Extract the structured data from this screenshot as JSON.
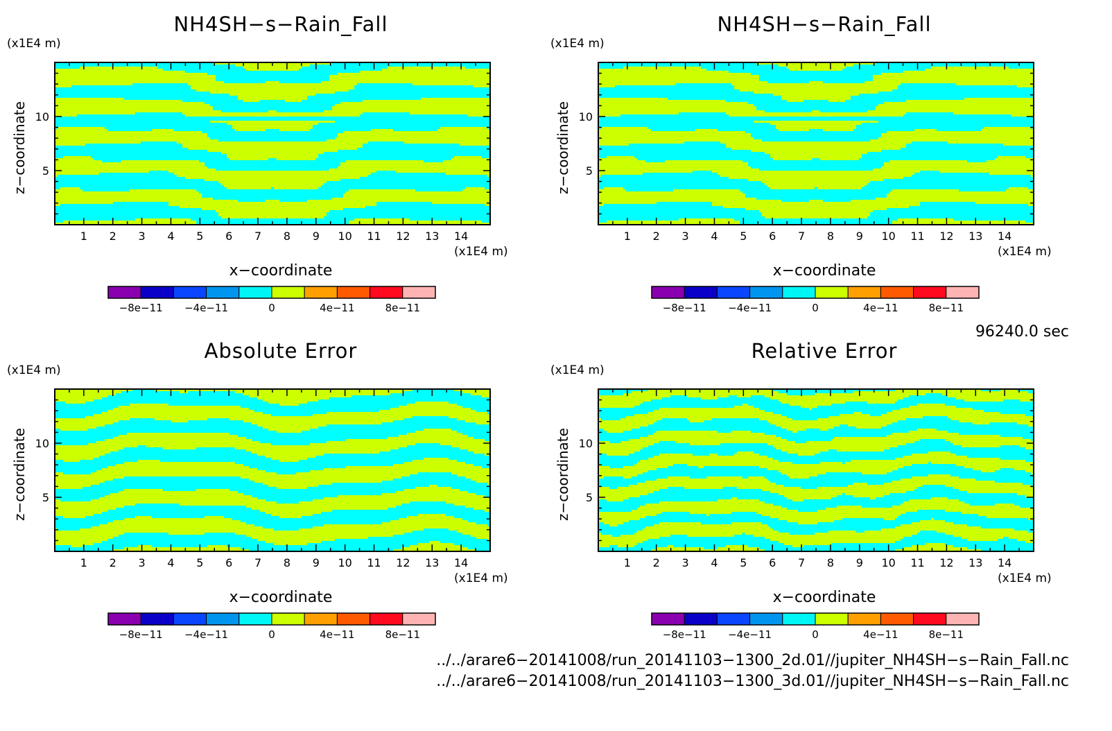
{
  "panels": [
    {
      "title": "NH4SH−s−Rain_Fall",
      "pattern": "field"
    },
    {
      "title": "NH4SH−s−Rain_Fall",
      "pattern": "field"
    },
    {
      "title": "Absolute Error",
      "pattern": "abs"
    },
    {
      "title": "Relative Error",
      "pattern": "rel"
    }
  ],
  "z_unit": "(x1E4 m)",
  "x_unit": "(x1E4 m)",
  "x_axis_label": "x−coordinate",
  "z_axis_label": "z−coordinate",
  "time_label": "96240.0 sec",
  "footer": {
    "line1": "../../arare6−20141008/run_20141103−1300_2d.01//jupiter_NH4SH−s−Rain_Fall.nc",
    "line2": "../../arare6−20141008/run_20141103−1300_3d.01//jupiter_NH4SH−s−Rain_Fall.nc"
  },
  "colors": {
    "cyan": "#00ffff",
    "yellow": "#ccff00",
    "colorbar": [
      "#8a00b0",
      "#0a00c8",
      "#0a46ff",
      "#0096f0",
      "#00f5f5",
      "#ccff00",
      "#ffa000",
      "#ff5a00",
      "#ff0a1e",
      "#ffb4b4"
    ]
  },
  "chart_data": {
    "type": "heatmap",
    "x_ticks": [
      "1",
      "2",
      "3",
      "4",
      "5",
      "6",
      "7",
      "8",
      "9",
      "10",
      "11",
      "12",
      "13",
      "14"
    ],
    "z_ticks": [
      "5",
      "10"
    ],
    "x_range": [
      0,
      15
    ],
    "z_range": [
      0,
      15
    ],
    "colorbar_levels": [
      -1e-10,
      -8e-11,
      -6e-11,
      -4e-11,
      -2e-11,
      0,
      2e-11,
      4e-11,
      6e-11,
      8e-11,
      1e-10
    ],
    "colorbar_labels": [
      {
        "value": -8e-11,
        "text": "−8e−11"
      },
      {
        "value": -4e-11,
        "text": "−4e−11"
      },
      {
        "value": 0,
        "text": "0"
      },
      {
        "value": 4e-11,
        "text": "4e−11"
      },
      {
        "value": 8e-11,
        "text": "8e−11"
      }
    ]
  }
}
